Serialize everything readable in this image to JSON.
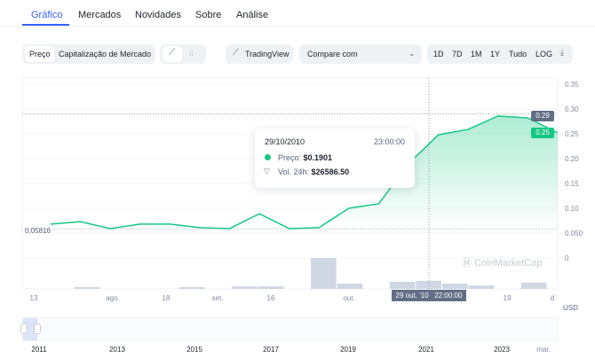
{
  "tabs": [
    "Gráfico",
    "Mercados",
    "Novidades",
    "Sobre",
    "Análise"
  ],
  "toolbar": {
    "price": "Preço",
    "market_cap": "Capitalização de Mercado",
    "line_icon": "line-chart-icon",
    "candle_icon": "candlestick-icon",
    "tradingview": "TradingView",
    "compare": "Compare com",
    "ranges": [
      "1D",
      "7D",
      "1M",
      "1Y",
      "Tudo"
    ],
    "log": "LOG",
    "download_icon": "download-icon"
  },
  "tooltip": {
    "date": "29/10/2010",
    "time": "23:00:00",
    "price_label": "Preço:",
    "price_value": "$0.1901",
    "vol_label": "Vol. 24h:",
    "vol_value": "$26586.50"
  },
  "crosshair": {
    "x_label": "29 out. '10   22:00:00",
    "y_label": "0.29"
  },
  "current_price_label": "0.25",
  "start_price_label": "0.05816",
  "currency": "USD",
  "watermark": "CoinMarketCap",
  "colors": {
    "accent": "#3861fb",
    "line": "#16c784",
    "volume": "#cfd6e4",
    "crosshair_label": "#616e85"
  },
  "chart_data": {
    "type": "line",
    "series": [
      {
        "values": [
          0.068,
          0.073,
          0.059,
          0.068,
          0.068,
          0.061,
          0.059,
          0.089,
          0.059,
          0.061,
          0.1,
          0.109,
          0.19,
          0.248,
          0.259,
          0.286,
          0.282,
          0.252
        ]
      }
    ],
    "volume_relative": [
      0,
      0.05,
      0,
      0,
      0,
      0.05,
      0,
      0.08,
      0.08,
      0,
      1,
      0.17,
      0,
      0.23,
      0.26,
      0.17,
      0.11,
      0,
      0.2
    ],
    "y_ticks": [
      "0.35",
      "0.30",
      "0.25",
      "0.20",
      "0.15",
      "0.10",
      "0.050",
      "0"
    ],
    "ylim": [
      0,
      0.35
    ],
    "x_ticks": [
      "13",
      "ago.",
      "18",
      "set.",
      "16",
      "out.",
      "19",
      "d"
    ],
    "grid": true,
    "navigator_ticks": [
      "2011",
      "2013",
      "2015",
      "2017",
      "2019",
      "2021",
      "2023",
      "mar."
    ]
  }
}
